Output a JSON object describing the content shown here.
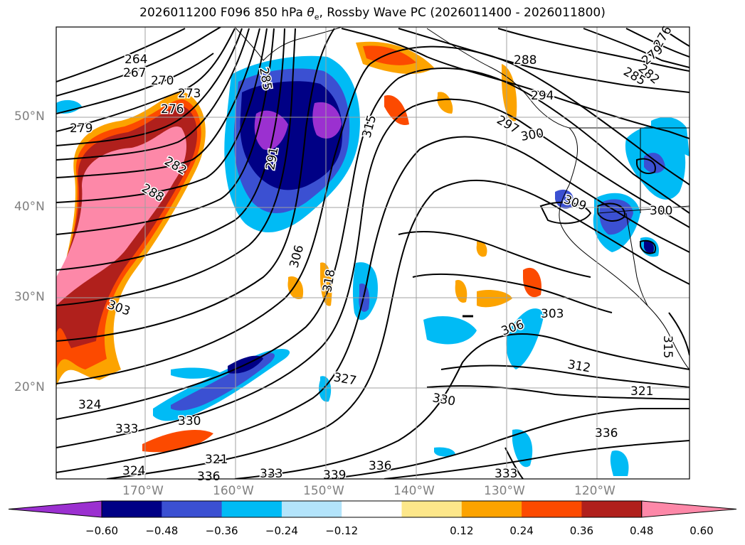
{
  "title": {
    "run": "2026011200",
    "forecast": "F096",
    "level": "850 hPa",
    "symbol": "θ",
    "symbol_sub": "e",
    "rest": ", Rossby Wave PC (2026011400 - 2026011800)"
  },
  "axes": {
    "lat_labels": [
      "50°N",
      "40°N",
      "30°N",
      "20°N"
    ],
    "lon_labels": [
      "170°W",
      "160°W",
      "150°W",
      "140°W",
      "130°W",
      "120°W"
    ]
  },
  "colorbar": {
    "labels": [
      "−0.60",
      "−0.48",
      "−0.36",
      "−0.24",
      "−0.12",
      "0.12",
      "0.24",
      "0.36",
      "0.48",
      "0.60"
    ],
    "colors": [
      "#9b30d0",
      "#000085",
      "#3b50d2",
      "#00bbf5",
      "#b3e4fb",
      "#ffffff",
      "#fde78a",
      "#fca300",
      "#fc4a00",
      "#b0201c",
      "#fd88a8"
    ]
  },
  "contour_labels": [
    {
      "text": "264"
    },
    {
      "text": "267"
    },
    {
      "text": "270"
    },
    {
      "text": "273"
    },
    {
      "text": "276"
    },
    {
      "text": "279"
    },
    {
      "text": "282"
    },
    {
      "text": "288"
    },
    {
      "text": "303"
    },
    {
      "text": "285"
    },
    {
      "text": "291"
    },
    {
      "text": "315"
    },
    {
      "text": "306"
    },
    {
      "text": "318"
    },
    {
      "text": "327"
    },
    {
      "text": "324"
    },
    {
      "text": "330"
    },
    {
      "text": "333"
    },
    {
      "text": "321"
    },
    {
      "text": "324"
    },
    {
      "text": "336"
    },
    {
      "text": "333"
    },
    {
      "text": "339"
    },
    {
      "text": "336"
    },
    {
      "text": "330"
    },
    {
      "text": "288"
    },
    {
      "text": "294"
    },
    {
      "text": "297"
    },
    {
      "text": "300"
    },
    {
      "text": "309"
    },
    {
      "text": "300"
    },
    {
      "text": "303"
    },
    {
      "text": "306"
    },
    {
      "text": "312"
    },
    {
      "text": "321"
    },
    {
      "text": "336"
    },
    {
      "text": "333"
    },
    {
      "text": "315"
    },
    {
      "text": "276"
    },
    {
      "text": "279"
    },
    {
      "text": "282"
    },
    {
      "text": "285"
    }
  ]
}
